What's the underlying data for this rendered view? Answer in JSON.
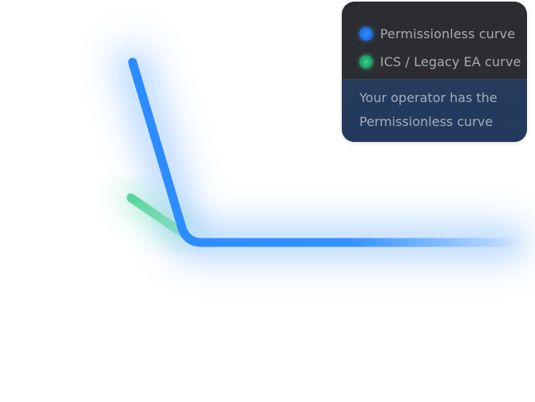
{
  "chart_data": {
    "type": "line",
    "title": "",
    "xlabel": "",
    "ylabel": "",
    "grid": false,
    "legend_position": "top-right",
    "series": [
      {
        "name": "Permissionless curve",
        "color": "#2b8cff"
      },
      {
        "name": "ICS / Legacy EA curve",
        "color": "#3fcf8e"
      }
    ],
    "annotation": "Your operator has the Permissionless curve"
  },
  "legend": {
    "background": "#2b2d31",
    "note_background": "#233a5e",
    "text_color": "#a7abb3"
  }
}
